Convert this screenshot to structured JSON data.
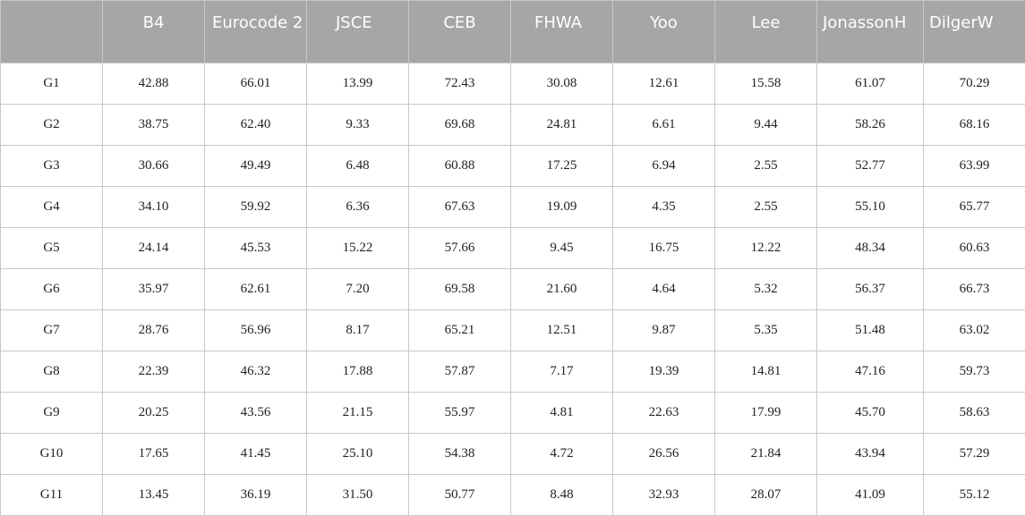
{
  "table": {
    "columns": [
      "",
      "B4",
      "Eurocode 2",
      "JSCE",
      "CEB",
      "FHWA",
      "Yoo",
      "Lee",
      "JonassonH",
      "DilgerW"
    ],
    "rows": [
      [
        "G1",
        "42.88",
        "66.01",
        "13.99",
        "72.43",
        "30.08",
        "12.61",
        "15.58",
        "61.07",
        "70.29"
      ],
      [
        "G2",
        "38.75",
        "62.40",
        "9.33",
        "69.68",
        "24.81",
        "6.61",
        "9.44",
        "58.26",
        "68.16"
      ],
      [
        "G3",
        "30.66",
        "49.49",
        "6.48",
        "60.88",
        "17.25",
        "6.94",
        "2.55",
        "52.77",
        "63.99"
      ],
      [
        "G4",
        "34.10",
        "59.92",
        "6.36",
        "67.63",
        "19.09",
        "4.35",
        "2.55",
        "55.10",
        "65.77"
      ],
      [
        "G5",
        "24.14",
        "45.53",
        "15.22",
        "57.66",
        "9.45",
        "16.75",
        "12.22",
        "48.34",
        "60.63"
      ],
      [
        "G6",
        "35.97",
        "62.61",
        "7.20",
        "69.58",
        "21.60",
        "4.64",
        "5.32",
        "56.37",
        "66.73"
      ],
      [
        "G7",
        "28.76",
        "56.96",
        "8.17",
        "65.21",
        "12.51",
        "9.87",
        "5.35",
        "51.48",
        "63.02"
      ],
      [
        "G8",
        "22.39",
        "46.32",
        "17.88",
        "57.87",
        "7.17",
        "19.39",
        "14.81",
        "47.16",
        "59.73"
      ],
      [
        "G9",
        "20.25",
        "43.56",
        "21.15",
        "55.97",
        "4.81",
        "22.63",
        "17.99",
        "45.70",
        "58.63"
      ],
      [
        "G10",
        "17.65",
        "41.45",
        "25.10",
        "54.38",
        "4.72",
        "26.56",
        "21.84",
        "43.94",
        "57.29"
      ],
      [
        "G11",
        "13.45",
        "36.19",
        "31.50",
        "50.77",
        "8.48",
        "32.93",
        "28.07",
        "41.09",
        "55.12"
      ]
    ]
  }
}
